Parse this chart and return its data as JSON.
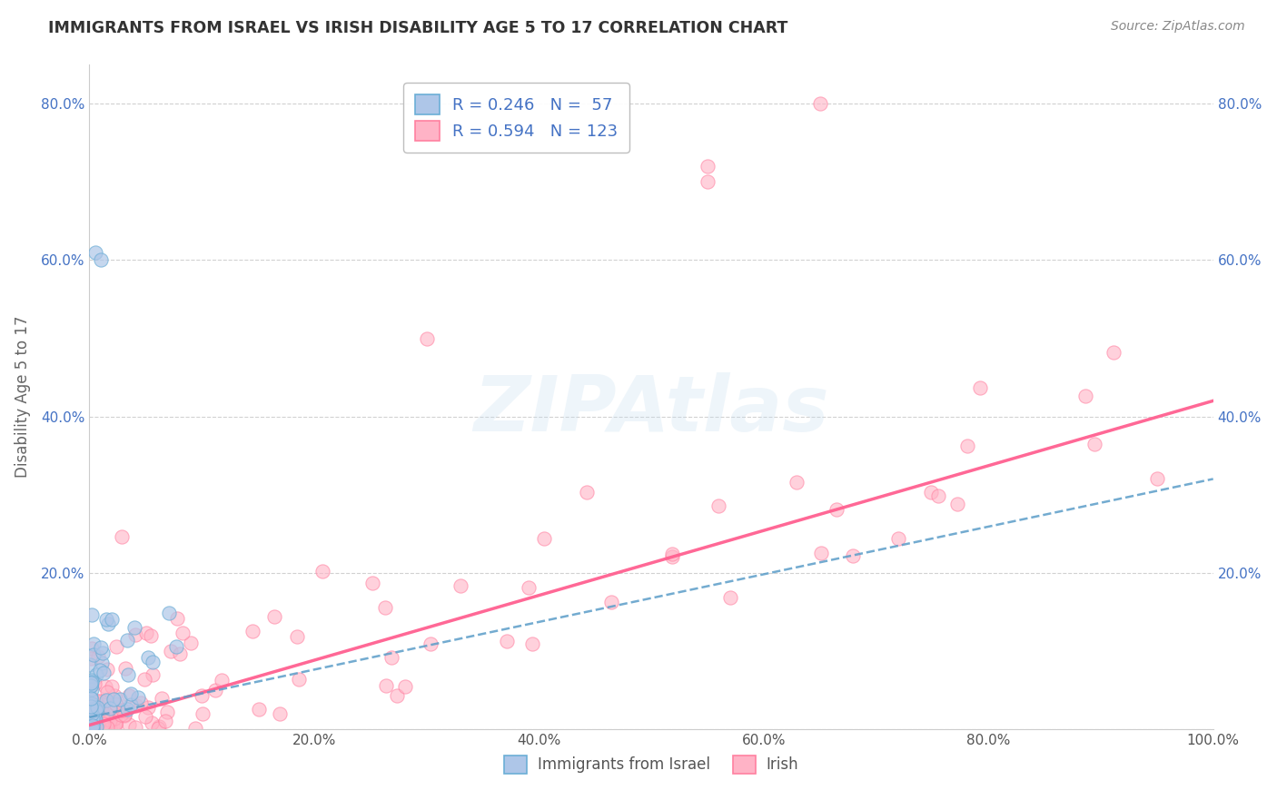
{
  "title": "IMMIGRANTS FROM ISRAEL VS IRISH DISABILITY AGE 5 TO 17 CORRELATION CHART",
  "source": "Source: ZipAtlas.com",
  "ylabel": "Disability Age 5 to 17",
  "watermark": "ZIPAtlas",
  "legend_israel": {
    "R": 0.246,
    "N": 57,
    "color": "#aec6e8",
    "edge_color": "#6baed6",
    "line_color": "#5b9dc8"
  },
  "legend_irish": {
    "R": 0.594,
    "N": 123,
    "color": "#ffb3c6",
    "edge_color": "#ff80a0",
    "line_color": "#ff6090"
  },
  "xlim": [
    0,
    1.0
  ],
  "ylim": [
    0,
    0.85
  ],
  "xticks": [
    0.0,
    0.2,
    0.4,
    0.6,
    0.8,
    1.0
  ],
  "xtick_labels": [
    "0.0%",
    "20.0%",
    "40.0%",
    "60.0%",
    "80.0%",
    "100.0%"
  ],
  "yticks": [
    0.0,
    0.2,
    0.4,
    0.6,
    0.8
  ],
  "ytick_labels": [
    "",
    "20.0%",
    "40.0%",
    "60.0%",
    "80.0%"
  ],
  "grid_color": "#cccccc",
  "background_color": "#ffffff",
  "irish_trend_x0": 0.0,
  "irish_trend_y0": 0.005,
  "irish_trend_x1": 1.0,
  "irish_trend_y1": 0.42,
  "israel_trend_x0": 0.0,
  "israel_trend_y0": 0.015,
  "israel_trend_x1": 1.0,
  "israel_trend_y1": 0.32
}
